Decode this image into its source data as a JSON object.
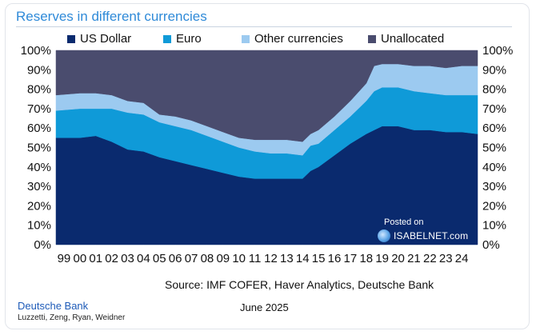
{
  "chart_data": {
    "type": "area",
    "stacked": true,
    "title": "Reserves in different currencies",
    "xlabel": "",
    "ylabel": "",
    "ylim": [
      0,
      100
    ],
    "yticks": [
      "0%",
      "10%",
      "20%",
      "30%",
      "40%",
      "50%",
      "60%",
      "70%",
      "80%",
      "90%",
      "100%"
    ],
    "xticks": [
      "99",
      "00",
      "01",
      "02",
      "03",
      "04",
      "05",
      "06",
      "07",
      "08",
      "09",
      "10",
      "11",
      "12",
      "13",
      "14",
      "15",
      "16",
      "17",
      "18",
      "19",
      "20",
      "21",
      "22",
      "23",
      "24"
    ],
    "x": [
      1999.0,
      2000.0,
      2001.0,
      2002.0,
      2003.0,
      2004.0,
      2005.0,
      2006.0,
      2007.0,
      2008.0,
      2009.0,
      2010.0,
      2011.0,
      2012.0,
      2013.0,
      2014.0,
      2014.5,
      2015.0,
      2016.0,
      2017.0,
      2018.0,
      2018.5,
      2019.0,
      2020.0,
      2021.0,
      2022.0,
      2023.0,
      2024.0,
      2024.75
    ],
    "series": [
      {
        "name": "US Dollar",
        "color": "#0a2a6e",
        "values": [
          55,
          55,
          56,
          53,
          49,
          48,
          45,
          43,
          41,
          39,
          37,
          35,
          34,
          34,
          34,
          34,
          38,
          40,
          46,
          52,
          57,
          59,
          61,
          61,
          59,
          59,
          58,
          58,
          57
        ]
      },
      {
        "name": "Euro",
        "color": "#0f9ad8",
        "values": [
          14,
          15,
          14,
          17,
          19,
          19,
          18,
          18,
          18,
          17,
          16,
          15,
          14,
          13,
          13,
          12,
          13,
          12,
          13,
          14,
          17,
          20,
          20,
          20,
          20,
          19,
          19,
          19,
          20
        ]
      },
      {
        "name": "Other currencies",
        "color": "#9ccaf0",
        "values": [
          8,
          8,
          8,
          7,
          6,
          6,
          4,
          5,
          5,
          5,
          5,
          5,
          6,
          7,
          7,
          7,
          6,
          7,
          7,
          8,
          9,
          13,
          12,
          12,
          13,
          14,
          14,
          15,
          15
        ]
      },
      {
        "name": "Unallocated",
        "color": "#4a4c6e",
        "values": [
          23,
          22,
          22,
          23,
          26,
          27,
          33,
          34,
          36,
          39,
          42,
          45,
          46,
          46,
          46,
          47,
          43,
          41,
          34,
          26,
          17,
          8,
          7,
          7,
          8,
          8,
          9,
          8,
          8
        ]
      }
    ],
    "legend_position": "top",
    "grid": false
  },
  "source_note": "Source: IMF COFER, Haver Analytics, Deutsche Bank",
  "footer": {
    "brand": "Deutsche Bank",
    "authors": "Luzzetti, Zeng, Ryan, Weidner",
    "date": "June 2025"
  },
  "watermark": {
    "posted": "Posted on",
    "site": "ISABELNET.com",
    "icon": "globe-icon"
  }
}
